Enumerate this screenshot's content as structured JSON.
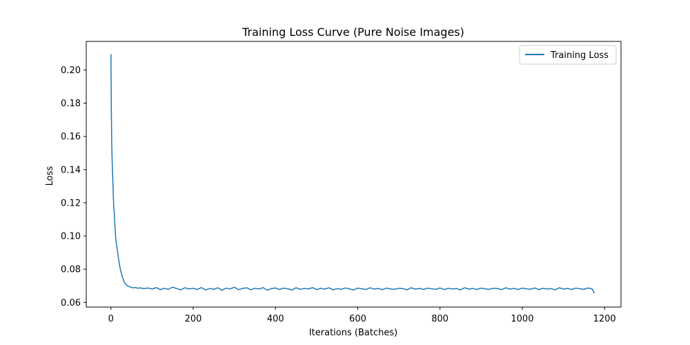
{
  "chart_data": {
    "type": "line",
    "title": "Training Loss Curve (Pure Noise Images)",
    "xlabel": "Iterations (Batches)",
    "ylabel": "Loss",
    "xlim": [
      -60,
      1240
    ],
    "ylim": [
      0.0572,
      0.2172
    ],
    "xticks": [
      0,
      200,
      400,
      600,
      800,
      1000,
      1200
    ],
    "xtick_labels": [
      "0",
      "200",
      "400",
      "600",
      "800",
      "1000",
      "1200"
    ],
    "yticks": [
      0.06,
      0.08,
      0.1,
      0.12,
      0.14,
      0.16,
      0.18,
      0.2
    ],
    "ytick_labels": [
      "0.06",
      "0.08",
      "0.10",
      "0.12",
      "0.14",
      "0.16",
      "0.18",
      "0.20"
    ],
    "grid": false,
    "legend_position": "top-right",
    "series": [
      {
        "name": "Training Loss",
        "color": "#1f77b4",
        "x": [
          0,
          1,
          2,
          3,
          4,
          5,
          6,
          7,
          8,
          9,
          10,
          11,
          12,
          14,
          16,
          18,
          20,
          22,
          24,
          26,
          28,
          30,
          32,
          34,
          36,
          38,
          40,
          45,
          50,
          55,
          60,
          65,
          70,
          80,
          90,
          100,
          110,
          120,
          130,
          140,
          150,
          160,
          170,
          180,
          190,
          200,
          210,
          220,
          230,
          240,
          250,
          260,
          270,
          280,
          290,
          300,
          310,
          320,
          330,
          340,
          350,
          360,
          370,
          380,
          390,
          400,
          410,
          420,
          430,
          440,
          450,
          460,
          470,
          480,
          490,
          500,
          510,
          520,
          530,
          540,
          550,
          560,
          570,
          580,
          590,
          600,
          610,
          620,
          630,
          640,
          650,
          660,
          670,
          680,
          690,
          700,
          710,
          720,
          730,
          740,
          750,
          760,
          770,
          780,
          790,
          800,
          810,
          820,
          830,
          840,
          850,
          860,
          870,
          880,
          890,
          900,
          910,
          920,
          930,
          940,
          950,
          960,
          970,
          980,
          990,
          1000,
          1010,
          1020,
          1030,
          1040,
          1050,
          1060,
          1070,
          1080,
          1090,
          1100,
          1110,
          1120,
          1130,
          1140,
          1150,
          1160,
          1170,
          1175
        ],
        "y": [
          0.2095,
          0.175,
          0.155,
          0.145,
          0.138,
          0.131,
          0.123,
          0.117,
          0.115,
          0.109,
          0.105,
          0.101,
          0.098,
          0.094,
          0.091,
          0.087,
          0.084,
          0.081,
          0.079,
          0.077,
          0.075,
          0.074,
          0.0725,
          0.0715,
          0.071,
          0.0705,
          0.07,
          0.0695,
          0.069,
          0.0688,
          0.069,
          0.0685,
          0.0688,
          0.0683,
          0.0687,
          0.0681,
          0.0689,
          0.0677,
          0.0685,
          0.0679,
          0.0692,
          0.0683,
          0.0676,
          0.0688,
          0.0681,
          0.0685,
          0.0678,
          0.0689,
          0.0675,
          0.0684,
          0.0679,
          0.0688,
          0.0673,
          0.0686,
          0.0681,
          0.0692,
          0.0677,
          0.0684,
          0.0688,
          0.0676,
          0.0685,
          0.0681,
          0.0689,
          0.0674,
          0.0683,
          0.0687,
          0.0678,
          0.0686,
          0.0682,
          0.0675,
          0.0688,
          0.0679,
          0.0684,
          0.0681,
          0.0689,
          0.0677,
          0.0685,
          0.068,
          0.0688,
          0.0676,
          0.0683,
          0.0679,
          0.0687,
          0.0681,
          0.0675,
          0.0686,
          0.0682,
          0.0678,
          0.0688,
          0.068,
          0.0684,
          0.0677,
          0.0686,
          0.0681,
          0.0679,
          0.0685,
          0.0683,
          0.0676,
          0.0688,
          0.068,
          0.0684,
          0.0678,
          0.0686,
          0.0682,
          0.0679,
          0.0687,
          0.0677,
          0.0685,
          0.0681,
          0.0683,
          0.0676,
          0.0688,
          0.068,
          0.0684,
          0.0678,
          0.0686,
          0.0681,
          0.0679,
          0.0685,
          0.0683,
          0.0677,
          0.0688,
          0.068,
          0.0684,
          0.0678,
          0.0686,
          0.0682,
          0.0679,
          0.0687,
          0.0677,
          0.0685,
          0.0681,
          0.0683,
          0.0676,
          0.0688,
          0.068,
          0.0684,
          0.0678,
          0.0686,
          0.0682,
          0.0679,
          0.0687,
          0.0681,
          0.0655
        ]
      }
    ]
  }
}
